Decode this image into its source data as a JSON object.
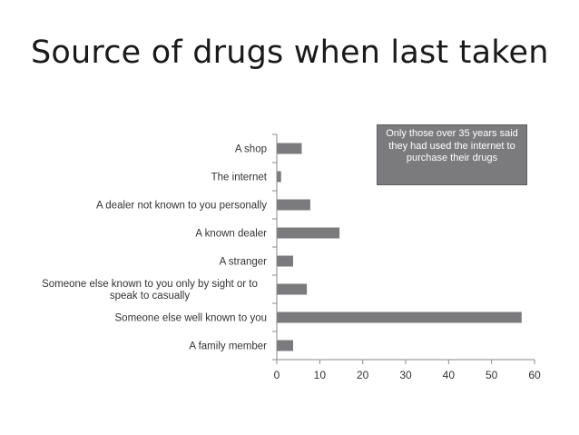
{
  "slide": {
    "title": "Source of drugs when last taken"
  },
  "annotation": {
    "text": "Only those over 35 years said they had used the internet to purchase their drugs"
  },
  "colors": {
    "bar": "#7b7b7e",
    "axis": "#8a8a8a",
    "text": "#333333"
  },
  "chart_data": {
    "type": "bar",
    "orientation": "horizontal",
    "title": "",
    "xlabel": "",
    "ylabel": "",
    "xlim": [
      0,
      60
    ],
    "ticks": [
      0,
      10,
      20,
      30,
      40,
      50,
      60
    ],
    "grid": false,
    "legend": "none",
    "categories": [
      "A shop",
      "The internet",
      "A dealer not known to you personally",
      "A known dealer",
      "A stranger",
      "Someone else known to you only by sight or to speak to casually",
      "Someone else well known to you",
      "A family member"
    ],
    "category_label_lines": [
      [
        "A shop"
      ],
      [
        "The internet"
      ],
      [
        "A dealer not known to you personally"
      ],
      [
        "A known dealer"
      ],
      [
        "A stranger"
      ],
      [
        "Someone else known to you only by sight or to",
        "speak to casually"
      ],
      [
        "Someone else well known to you"
      ],
      [
        "A family member"
      ]
    ],
    "values": [
      5.8,
      1.0,
      7.8,
      14.6,
      3.8,
      7.0,
      57.0,
      3.8
    ]
  }
}
